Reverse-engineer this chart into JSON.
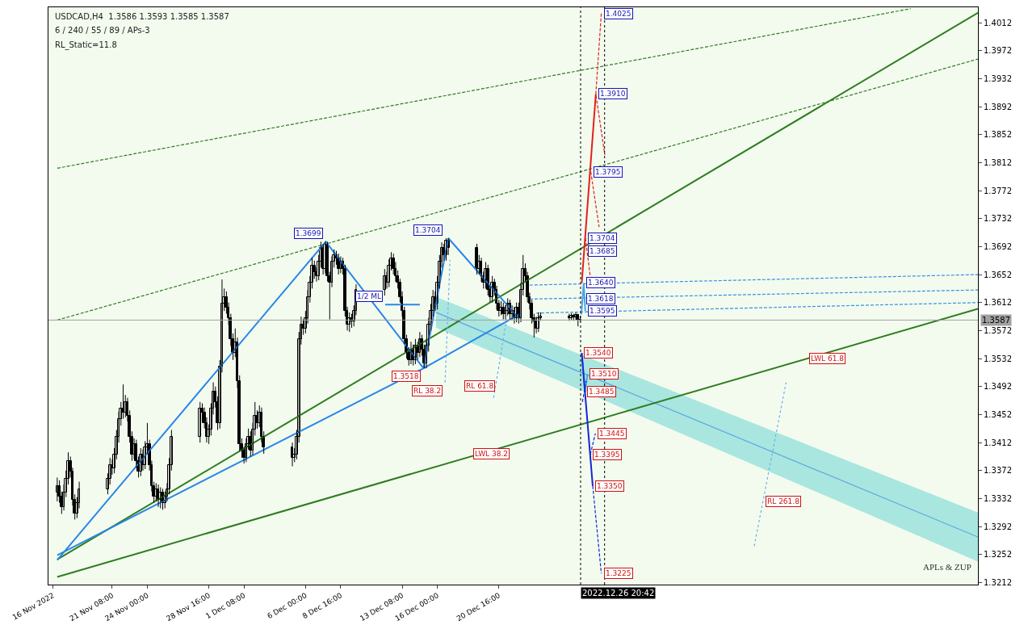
{
  "chart_data": {
    "type": "candlestick",
    "annotations": [
      "USDCAD,H4  1.3586 1.3593 1.3585 1.3587",
      "6 / 240 / 55 / 89 / APs-3",
      "RL_Static=11.8",
      "APLs & ZUP",
      {
        "text": "1.3699",
        "x": "2022-12-07T12:48",
        "y": 1.3699
      },
      {
        "text": "1.3704",
        "x": "2022-12-16T14:24",
        "y": 1.3704
      },
      {
        "text": "1.3518",
        "x": "2022-12-14T22:48",
        "y": 1.3518
      },
      {
        "text": "1.4025",
        "x": "2022-12-28T10:24",
        "y": 1.4025
      },
      {
        "text": "1.3910",
        "x": "2022-12-28T00:24",
        "y": 1.391
      },
      {
        "text": "1.3795",
        "x": "2022-12-27T15:12",
        "y": 1.3799
      },
      {
        "text": "1.3704",
        "x": "2022-12-27T05:36",
        "y": 1.3704
      },
      {
        "text": "1.3685",
        "x": "2022-12-27T05:36",
        "y": 1.3685
      },
      {
        "text": "1.3640",
        "x": "2022-12-27T02:24",
        "y": 1.364
      },
      {
        "text": "1.3618",
        "x": "2022-12-27T02:24",
        "y": 1.3618
      },
      {
        "text": "1.3595",
        "x": "2022-12-27T05:12",
        "y": 1.36
      },
      {
        "text": "1.3540",
        "x": "2022-12-26T22:48",
        "y": 1.354
      },
      {
        "text": "1.3510",
        "x": "2022-12-27T09:12",
        "y": 1.351
      },
      {
        "text": "1.3485",
        "x": "2022-12-27T04:48",
        "y": 1.3485
      },
      {
        "text": "1.3445",
        "x": "2022-12-27T23:36",
        "y": 1.3425
      },
      {
        "text": "1.3395",
        "x": "2022-12-27T14:24",
        "y": 1.3395
      },
      {
        "text": "1.3350",
        "x": "2022-12-27T18:48",
        "y": 1.335
      },
      {
        "text": "1.3225",
        "x": "2022-12-28T10:24",
        "y": 1.3225
      },
      {
        "text": "1/2 ML",
        "x": "2022-12-12T01:00",
        "y": 1.3609
      },
      {
        "text": "RL 38.2",
        "x": "2022-12-16T14:00",
        "y": 1.3498
      },
      {
        "text": "RL 61.8",
        "x": "2022-12-20T14:00",
        "y": 1.3504
      },
      {
        "text": "LWL 38.2",
        "x": "2022-12-21T16:00",
        "y": 1.3407
      },
      {
        "text": "LWL 61.8",
        "x": "2023-01-13T00:00",
        "y": 1.3532
      },
      {
        "text": "RL 261.8",
        "x": "2023-01-09T16:42",
        "y": 1.3328
      }
    ],
    "x": [
      "2022-11-17T04:00",
      "2022-11-17T08:00",
      "2022-11-17T12:00",
      "2022-11-17T16:00",
      "2022-11-17T20:00",
      "2022-11-18T00:00",
      "2022-11-18T04:00",
      "2022-11-18T08:00",
      "2022-11-18T12:00",
      "2022-11-18T16:00",
      "2022-11-18T20:00",
      "2022-11-21T00:00",
      "2022-11-21T04:00",
      "2022-11-21T08:00",
      "2022-11-21T12:00",
      "2022-11-21T16:00",
      "2022-11-21T20:00",
      "2022-11-22T00:00",
      "2022-11-22T04:00",
      "2022-11-22T08:00",
      "2022-11-22T12:00",
      "2022-11-22T16:00",
      "2022-11-22T20:00",
      "2022-11-23T00:00",
      "2022-11-23T04:00",
      "2022-11-23T08:00",
      "2022-11-23T12:00",
      "2022-11-23T16:00",
      "2022-11-23T20:00",
      "2022-11-24T00:00",
      "2022-11-24T04:00",
      "2022-11-24T08:00",
      "2022-11-24T12:00",
      "2022-11-24T16:00",
      "2022-11-24T20:00",
      "2022-11-25T00:00",
      "2022-11-25T04:00",
      "2022-11-25T08:00",
      "2022-11-25T12:00",
      "2022-11-25T16:00",
      "2022-11-25T20:00",
      "2022-11-28T00:00",
      "2022-11-28T04:00",
      "2022-11-28T08:00",
      "2022-11-28T12:00",
      "2022-11-28T16:00",
      "2022-11-28T20:00",
      "2022-11-29T00:00",
      "2022-11-29T04:00",
      "2022-11-29T08:00",
      "2022-11-29T12:00",
      "2022-11-29T16:00",
      "2022-11-29T20:00",
      "2022-11-30T00:00",
      "2022-11-30T04:00",
      "2022-11-30T08:00",
      "2022-11-30T12:00",
      "2022-11-30T16:00",
      "2022-11-30T20:00",
      "2022-12-01T00:00",
      "2022-12-01T04:00",
      "2022-12-01T08:00",
      "2022-12-01T12:00",
      "2022-12-01T16:00",
      "2022-12-01T20:00",
      "2022-12-02T00:00",
      "2022-12-02T04:00",
      "2022-12-02T08:00",
      "2022-12-02T12:00",
      "2022-12-02T16:00",
      "2022-12-02T20:00",
      "2022-12-05T00:00",
      "2022-12-05T04:00",
      "2022-12-05T08:00",
      "2022-12-05T12:00",
      "2022-12-05T16:00",
      "2022-12-05T20:00",
      "2022-12-06T00:00",
      "2022-12-06T04:00",
      "2022-12-06T08:00",
      "2022-12-06T12:00",
      "2022-12-06T16:00",
      "2022-12-06T20:00",
      "2022-12-07T00:00",
      "2022-12-07T04:00",
      "2022-12-07T08:00",
      "2022-12-07T12:00",
      "2022-12-07T16:00",
      "2022-12-07T20:00",
      "2022-12-08T00:00",
      "2022-12-08T04:00",
      "2022-12-08T08:00",
      "2022-12-08T12:00",
      "2022-12-08T16:00",
      "2022-12-08T20:00",
      "2022-12-09T00:00",
      "2022-12-09T04:00",
      "2022-12-09T08:00",
      "2022-12-09T12:00",
      "2022-12-09T16:00",
      "2022-12-09T20:00",
      "2022-12-12T00:00",
      "2022-12-12T04:00",
      "2022-12-12T08:00",
      "2022-12-12T12:00",
      "2022-12-12T16:00",
      "2022-12-12T20:00",
      "2022-12-13T00:00",
      "2022-12-13T04:00",
      "2022-12-13T08:00",
      "2022-12-13T12:00",
      "2022-12-13T16:00",
      "2022-12-13T20:00",
      "2022-12-14T00:00",
      "2022-12-14T04:00",
      "2022-12-14T08:00",
      "2022-12-14T12:00",
      "2022-12-14T16:00",
      "2022-12-14T20:00",
      "2022-12-15T00:00",
      "2022-12-15T04:00",
      "2022-12-15T08:00",
      "2022-12-15T12:00",
      "2022-12-15T16:00",
      "2022-12-15T20:00",
      "2022-12-16T00:00",
      "2022-12-16T04:00",
      "2022-12-16T08:00",
      "2022-12-16T12:00",
      "2022-12-16T16:00",
      "2022-12-16T20:00",
      "2022-12-19T00:00",
      "2022-12-19T04:00",
      "2022-12-19T08:00",
      "2022-12-19T12:00",
      "2022-12-19T16:00",
      "2022-12-19T20:00",
      "2022-12-20T00:00",
      "2022-12-20T04:00",
      "2022-12-20T08:00",
      "2022-12-20T12:00",
      "2022-12-20T16:00",
      "2022-12-20T20:00",
      "2022-12-21T00:00",
      "2022-12-21T04:00",
      "2022-12-21T08:00",
      "2022-12-21T12:00",
      "2022-12-21T16:00",
      "2022-12-21T20:00",
      "2022-12-22T00:00",
      "2022-12-22T04:00",
      "2022-12-22T08:00",
      "2022-12-22T12:00",
      "2022-12-22T16:00",
      "2022-12-22T20:00",
      "2022-12-23T00:00",
      "2022-12-23T04:00",
      "2022-12-23T08:00",
      "2022-12-23T12:00",
      "2022-12-23T16:00",
      "2022-12-23T20:00",
      "2022-12-26T00:00",
      "2022-12-26T04:00",
      "2022-12-26T08:00",
      "2022-12-26T12:00",
      "2022-12-26T16:00",
      "2022-12-26T20:00"
    ],
    "ohlc": [
      [
        1.334,
        1.3362,
        1.3328,
        1.335
      ],
      [
        1.335,
        1.3358,
        1.3326,
        1.3335
      ],
      [
        1.3335,
        1.3342,
        1.331,
        1.332
      ],
      [
        1.332,
        1.3352,
        1.3315,
        1.334
      ],
      [
        1.334,
        1.3372,
        1.3334,
        1.336
      ],
      [
        1.336,
        1.3398,
        1.3352,
        1.3385
      ],
      [
        1.3385,
        1.3392,
        1.3362,
        1.337
      ],
      [
        1.337,
        1.3376,
        1.3322,
        1.333
      ],
      [
        1.333,
        1.3338,
        1.3302,
        1.331
      ],
      [
        1.331,
        1.3334,
        1.3304,
        1.3325
      ],
      [
        1.3325,
        1.3356,
        1.3318,
        1.3345
      ],
      [
        1.3345,
        1.3368,
        1.3338,
        1.336
      ],
      [
        1.336,
        1.339,
        1.3352,
        1.338
      ],
      [
        1.338,
        1.3388,
        1.3366,
        1.3375
      ],
      [
        1.3375,
        1.3404,
        1.3368,
        1.3395
      ],
      [
        1.3395,
        1.343,
        1.3388,
        1.342
      ],
      [
        1.342,
        1.3456,
        1.3412,
        1.3445
      ],
      [
        1.3445,
        1.347,
        1.3436,
        1.346
      ],
      [
        1.346,
        1.3495,
        1.3446,
        1.3455
      ],
      [
        1.3455,
        1.348,
        1.3448,
        1.347
      ],
      [
        1.347,
        1.3476,
        1.3442,
        1.345
      ],
      [
        1.345,
        1.3458,
        1.3412,
        1.342
      ],
      [
        1.342,
        1.3428,
        1.3386,
        1.3395
      ],
      [
        1.3395,
        1.3418,
        1.3388,
        1.341
      ],
      [
        1.341,
        1.3416,
        1.3376,
        1.3385
      ],
      [
        1.3385,
        1.3392,
        1.3362,
        1.337
      ],
      [
        1.337,
        1.3404,
        1.3364,
        1.3395
      ],
      [
        1.3395,
        1.3402,
        1.3372,
        1.338
      ],
      [
        1.338,
        1.3414,
        1.3374,
        1.3405
      ],
      [
        1.3405,
        1.344,
        1.3396,
        1.341
      ],
      [
        1.341,
        1.3416,
        1.3372,
        1.338
      ],
      [
        1.338,
        1.3386,
        1.3342,
        1.335
      ],
      [
        1.335,
        1.3356,
        1.3326,
        1.3335
      ],
      [
        1.3335,
        1.3354,
        1.3328,
        1.3345
      ],
      [
        1.3345,
        1.3352,
        1.332,
        1.333
      ],
      [
        1.333,
        1.3348,
        1.3318,
        1.334
      ],
      [
        1.334,
        1.3346,
        1.3316,
        1.3325
      ],
      [
        1.3325,
        1.3342,
        1.3318,
        1.3335
      ],
      [
        1.3335,
        1.3354,
        1.3328,
        1.3345
      ],
      [
        1.3345,
        1.339,
        1.3338,
        1.338
      ],
      [
        1.338,
        1.343,
        1.3372,
        1.342
      ],
      [
        1.342,
        1.347,
        1.3412,
        1.346
      ],
      [
        1.346,
        1.3468,
        1.344,
        1.3455
      ],
      [
        1.3455,
        1.3462,
        1.3432,
        1.344
      ],
      [
        1.344,
        1.3448,
        1.3412,
        1.342
      ],
      [
        1.342,
        1.3438,
        1.341,
        1.343
      ],
      [
        1.343,
        1.3468,
        1.3422,
        1.346
      ],
      [
        1.346,
        1.3498,
        1.3452,
        1.3485
      ],
      [
        1.3485,
        1.3492,
        1.3462,
        1.347
      ],
      [
        1.347,
        1.3478,
        1.343,
        1.344
      ],
      [
        1.344,
        1.353,
        1.3432,
        1.352
      ],
      [
        1.352,
        1.3645,
        1.3512,
        1.361
      ],
      [
        1.361,
        1.3632,
        1.36,
        1.362
      ],
      [
        1.362,
        1.3628,
        1.3596,
        1.3605
      ],
      [
        1.3605,
        1.3612,
        1.358,
        1.359
      ],
      [
        1.359,
        1.3596,
        1.355,
        1.356
      ],
      [
        1.356,
        1.3568,
        1.353,
        1.354
      ],
      [
        1.354,
        1.3575,
        1.3534,
        1.3555
      ],
      [
        1.3555,
        1.3562,
        1.349,
        1.35
      ],
      [
        1.35,
        1.3508,
        1.34,
        1.341
      ],
      [
        1.341,
        1.3418,
        1.339,
        1.34
      ],
      [
        1.34,
        1.3406,
        1.3382,
        1.339
      ],
      [
        1.339,
        1.3418,
        1.3384,
        1.341
      ],
      [
        1.341,
        1.3432,
        1.3402,
        1.342
      ],
      [
        1.342,
        1.3428,
        1.3392,
        1.34
      ],
      [
        1.34,
        1.344,
        1.3394,
        1.343
      ],
      [
        1.343,
        1.347,
        1.3422,
        1.345
      ],
      [
        1.345,
        1.3458,
        1.3432,
        1.344
      ],
      [
        1.344,
        1.3465,
        1.3434,
        1.3455
      ],
      [
        1.3455,
        1.3462,
        1.3412,
        1.342
      ],
      [
        1.342,
        1.3428,
        1.3396,
        1.3405
      ],
      [
        1.3405,
        1.3412,
        1.3378,
        1.339
      ],
      [
        1.339,
        1.3404,
        1.3384,
        1.3395
      ],
      [
        1.3395,
        1.343,
        1.3388,
        1.342
      ],
      [
        1.342,
        1.357,
        1.3412,
        1.356
      ],
      [
        1.356,
        1.3592,
        1.3552,
        1.358
      ],
      [
        1.358,
        1.3588,
        1.3566,
        1.3575
      ],
      [
        1.3575,
        1.36,
        1.3568,
        1.359
      ],
      [
        1.359,
        1.363,
        1.3582,
        1.362
      ],
      [
        1.362,
        1.365,
        1.3612,
        1.364
      ],
      [
        1.364,
        1.3676,
        1.3632,
        1.3665
      ],
      [
        1.3665,
        1.3672,
        1.3646,
        1.3655
      ],
      [
        1.3655,
        1.3662,
        1.3642,
        1.365
      ],
      [
        1.365,
        1.368,
        1.3644,
        1.367
      ],
      [
        1.367,
        1.3699,
        1.3662,
        1.369
      ],
      [
        1.369,
        1.3696,
        1.3652,
        1.366
      ],
      [
        1.366,
        1.3699,
        1.3654,
        1.3695
      ],
      [
        1.3695,
        1.3699,
        1.3642,
        1.365
      ],
      [
        1.365,
        1.3656,
        1.3588,
        1.364
      ],
      [
        1.364,
        1.3678,
        1.3634,
        1.367
      ],
      [
        1.367,
        1.3688,
        1.3662,
        1.368
      ],
      [
        1.368,
        1.3686,
        1.3666,
        1.3675
      ],
      [
        1.3675,
        1.3682,
        1.3652,
        1.366
      ],
      [
        1.366,
        1.3678,
        1.3654,
        1.367
      ],
      [
        1.367,
        1.3676,
        1.3652,
        1.366
      ],
      [
        1.366,
        1.3666,
        1.3592,
        1.36
      ],
      [
        1.36,
        1.3606,
        1.3572,
        1.358
      ],
      [
        1.358,
        1.3598,
        1.357,
        1.359
      ],
      [
        1.359,
        1.3596,
        1.3576,
        1.3585
      ],
      [
        1.3585,
        1.3608,
        1.3578,
        1.36
      ],
      [
        1.36,
        1.3638,
        1.3594,
        1.363
      ],
      [
        1.363,
        1.366,
        1.3622,
        1.365
      ],
      [
        1.365,
        1.3656,
        1.3632,
        1.364
      ],
      [
        1.364,
        1.3674,
        1.3634,
        1.3665
      ],
      [
        1.3665,
        1.3684,
        1.3658,
        1.3675
      ],
      [
        1.3675,
        1.3682,
        1.3652,
        1.366
      ],
      [
        1.366,
        1.367,
        1.3642,
        1.365
      ],
      [
        1.365,
        1.3658,
        1.3632,
        1.364
      ],
      [
        1.364,
        1.3646,
        1.3612,
        1.362
      ],
      [
        1.362,
        1.3628,
        1.3592,
        1.36
      ],
      [
        1.36,
        1.3606,
        1.3552,
        1.356
      ],
      [
        1.356,
        1.3566,
        1.3532,
        1.354
      ],
      [
        1.354,
        1.3548,
        1.3522,
        1.353
      ],
      [
        1.353,
        1.3556,
        1.3524,
        1.3545
      ],
      [
        1.3545,
        1.3552,
        1.3522,
        1.353
      ],
      [
        1.353,
        1.356,
        1.3524,
        1.355
      ],
      [
        1.355,
        1.3556,
        1.353,
        1.354
      ],
      [
        1.354,
        1.357,
        1.3534,
        1.356
      ],
      [
        1.356,
        1.3566,
        1.3536,
        1.3545
      ],
      [
        1.3545,
        1.3552,
        1.3518,
        1.3525
      ],
      [
        1.3525,
        1.356,
        1.3518,
        1.355
      ],
      [
        1.355,
        1.359,
        1.3542,
        1.358
      ],
      [
        1.358,
        1.361,
        1.3572,
        1.36
      ],
      [
        1.36,
        1.363,
        1.3592,
        1.362
      ],
      [
        1.362,
        1.3628,
        1.36,
        1.361
      ],
      [
        1.361,
        1.365,
        1.3602,
        1.364
      ],
      [
        1.364,
        1.368,
        1.3632,
        1.367
      ],
      [
        1.367,
        1.3698,
        1.3662,
        1.369
      ],
      [
        1.369,
        1.3696,
        1.3672,
        1.368
      ],
      [
        1.368,
        1.3704,
        1.3672,
        1.37
      ],
      [
        1.37,
        1.3704,
        1.368,
        1.369
      ],
      [
        1.369,
        1.3696,
        1.3652,
        1.366
      ],
      [
        1.366,
        1.368,
        1.3652,
        1.367
      ],
      [
        1.367,
        1.3676,
        1.3642,
        1.365
      ],
      [
        1.365,
        1.3656,
        1.3632,
        1.364
      ],
      [
        1.364,
        1.367,
        1.3632,
        1.366
      ],
      [
        1.366,
        1.3666,
        1.3622,
        1.363
      ],
      [
        1.363,
        1.3636,
        1.3612,
        1.362
      ],
      [
        1.362,
        1.365,
        1.3612,
        1.364
      ],
      [
        1.364,
        1.3646,
        1.3622,
        1.363
      ],
      [
        1.363,
        1.3636,
        1.3602,
        1.361
      ],
      [
        1.361,
        1.3616,
        1.3592,
        1.36
      ],
      [
        1.36,
        1.3614,
        1.3594,
        1.3605
      ],
      [
        1.3605,
        1.3612,
        1.3588,
        1.3595
      ],
      [
        1.3595,
        1.3608,
        1.3588,
        1.36
      ],
      [
        1.36,
        1.3618,
        1.3594,
        1.361
      ],
      [
        1.361,
        1.3616,
        1.3588,
        1.3595
      ],
      [
        1.3595,
        1.3608,
        1.3588,
        1.36
      ],
      [
        1.36,
        1.3606,
        1.3582,
        1.359
      ],
      [
        1.359,
        1.3612,
        1.3584,
        1.3605
      ],
      [
        1.3605,
        1.3612,
        1.3582,
        1.359
      ],
      [
        1.359,
        1.364,
        1.3584,
        1.363
      ],
      [
        1.363,
        1.368,
        1.3622,
        1.366
      ],
      [
        1.366,
        1.3668,
        1.3642,
        1.365
      ],
      [
        1.365,
        1.3656,
        1.3612,
        1.362
      ],
      [
        1.362,
        1.3626,
        1.3602,
        1.361
      ],
      [
        1.361,
        1.3616,
        1.3582,
        1.359
      ],
      [
        1.359,
        1.3596,
        1.3562,
        1.3585
      ],
      [
        1.3585,
        1.3592,
        1.3568,
        1.3575
      ],
      [
        1.3575,
        1.3598,
        1.357,
        1.359
      ],
      [
        1.359,
        1.3598,
        1.3586,
        1.3592
      ],
      [
        1.3592,
        1.3596,
        1.3586,
        1.359
      ],
      [
        1.359,
        1.3597,
        1.3587,
        1.3593
      ],
      [
        1.3593,
        1.3596,
        1.3586,
        1.3591
      ],
      [
        1.3591,
        1.3598,
        1.3588,
        1.3594
      ],
      [
        1.3594,
        1.3596,
        1.3578,
        1.3586
      ],
      [
        1.3586,
        1.3593,
        1.3585,
        1.3587
      ]
    ],
    "series": [
      {
        "type": "line",
        "color": "#5aa6e0",
        "x": [
          "2022-12-15T21:36",
          "2023-01-26T00:00"
        ],
        "values": [
          1.3598,
          1.3277
        ],
        "lower": [
          1.3576,
          1.3242
        ],
        "upper": [
          1.362,
          1.3312
        ]
      },
      {
        "type": "line",
        "color": "#2e7d1e",
        "line_style": "solid",
        "x": [
          "2022-11-17T04:00",
          "2023-01-26T00:00"
        ],
        "values": [
          1.322,
          1.3603
        ]
      },
      {
        "type": "line",
        "color": "#2e7d1e",
        "line_style": "solid",
        "x": [
          "2022-11-17T04:00",
          "2023-01-26T00:00"
        ],
        "values": [
          1.3245,
          1.4026
        ]
      },
      {
        "type": "line",
        "color": "#2e7d1e",
        "line_style": "dashed",
        "x": [
          "2022-11-17T04:00",
          "2023-01-26T00:00"
        ],
        "values": [
          1.3587,
          1.396
        ]
      },
      {
        "type": "line",
        "color": "#2e7d1e",
        "line_style": "dashed",
        "x": [
          "2022-11-17T04:00",
          "2023-01-20T21:36"
        ],
        "values": [
          1.3804,
          1.4032
        ]
      },
      {
        "type": "line",
        "color": "#2a86e6",
        "line_style": "solid",
        "x": [
          "2022-11-17T04:00",
          "2022-12-07T12:48",
          "2022-12-14T22:48",
          "2022-12-16T20:00",
          "2022-12-22T04:48"
        ],
        "values": [
          1.3244,
          1.3699,
          1.3518,
          1.3704,
          1.3589
        ]
      },
      {
        "type": "line",
        "color": "#2a86e6",
        "line_style": "solid",
        "x": [
          "2022-11-17T04:00",
          "2022-12-14T22:48",
          "2022-12-22T04:48"
        ],
        "values": [
          1.3251,
          1.3518,
          1.3595
        ]
      },
      {
        "type": "line",
        "color": "#2a86e6",
        "line_style": "solid",
        "x": [
          "2022-12-12T01:00",
          "2022-12-14T16:00"
        ],
        "values": [
          1.3609,
          1.3609
        ]
      },
      {
        "type": "line",
        "color": "#6aaee8",
        "line_style": "dotted",
        "x": [
          "2022-12-16T14:00",
          "2022-12-16T23:00"
        ],
        "values": [
          1.3498,
          1.3673
        ]
      },
      {
        "type": "line",
        "color": "#6aaee8",
        "line_style": "dotted",
        "x": [
          "2022-12-20T06:24",
          "2022-12-21T11:12"
        ],
        "values": [
          1.3476,
          1.3613
        ]
      },
      {
        "type": "line",
        "color": "#6aaee8",
        "line_style": "dotted",
        "x": [
          "2023-01-09T00:48",
          "2023-01-11T10:48"
        ],
        "values": [
          1.3264,
          1.3498
        ]
      },
      {
        "type": "line",
        "color": "#3a8fe0",
        "line_style": "dashed",
        "x": [
          "2022-12-23T00:00",
          "2023-01-26T00:00"
        ],
        "values": [
          1.3637,
          1.3652
        ]
      },
      {
        "type": "line",
        "color": "#3a8fe0",
        "line_style": "dashed",
        "x": [
          "2022-12-23T00:00",
          "2023-01-26T00:00"
        ],
        "values": [
          1.3617,
          1.363
        ]
      },
      {
        "type": "line",
        "color": "#3a8fe0",
        "line_style": "dashed",
        "x": [
          "2022-12-23T12:00",
          "2023-01-26T00:00"
        ],
        "values": [
          1.3597,
          1.3612
        ]
      },
      {
        "type": "line",
        "color": "#e3201b",
        "line_style": "solid",
        "x": [
          "2022-12-26T22:48",
          "2022-12-28T00:24"
        ],
        "values": [
          1.364,
          1.391
        ]
      },
      {
        "type": "line",
        "color": "#e3201b",
        "line_style": "dashed",
        "x": [
          "2022-12-28T10:24",
          "2022-12-28T00:24",
          "2022-12-28T16:48"
        ],
        "values": [
          1.4025,
          1.391,
          1.3823
        ]
      },
      {
        "type": "line",
        "color": "#e3201b",
        "line_style": "dashed",
        "x": [
          "2022-12-27T05:36",
          "2022-12-27T14:00"
        ],
        "values": [
          1.3704,
          1.3651
        ]
      },
      {
        "type": "line",
        "color": "#e3201b",
        "line_style": "dashed",
        "x": [
          "2022-12-27T15:12",
          "2022-12-28T06:24"
        ],
        "values": [
          1.3799,
          1.372
        ]
      },
      {
        "type": "line",
        "color": "#4aa3ec",
        "line_style": "solid",
        "x": [
          "2022-12-26T22:00",
          "2022-12-27T02:24",
          "2022-12-27T05:12"
        ],
        "values": [
          1.3595,
          1.364,
          1.36
        ]
      },
      {
        "type": "line",
        "color": "#4aa3ec",
        "line_style": "solid",
        "x": [
          "2022-12-26T22:48",
          "2022-12-27T04:48",
          "2022-12-27T09:12"
        ],
        "values": [
          1.354,
          1.3485,
          1.351
        ]
      },
      {
        "type": "line",
        "color": "#1428d2",
        "line_style": "solid",
        "x": [
          "2022-12-26T22:48",
          "2022-12-27T18:48"
        ],
        "values": [
          1.354,
          1.335
        ]
      },
      {
        "type": "line",
        "color": "#1428d2",
        "line_style": "dashed",
        "x": [
          "2022-12-27T18:48",
          "2022-12-28T10:24"
        ],
        "values": [
          1.335,
          1.3225
        ]
      },
      {
        "type": "line",
        "color": "#1428d2",
        "line_style": "dashed",
        "x": [
          "2022-12-27T00:00",
          "2022-12-27T07:00"
        ],
        "values": [
          1.347,
          1.35
        ]
      },
      {
        "type": "line",
        "color": "#1428d2",
        "line_style": "dashed",
        "x": [
          "2022-12-27T14:24",
          "2022-12-27T23:36"
        ],
        "values": [
          1.3395,
          1.3425
        ]
      }
    ],
    "ref_lines": [
      {
        "axis": "y",
        "value": 1.3587,
        "label": "1.3587",
        "color": "#a0a0a0",
        "line_style": "solid"
      },
      {
        "axis": "x",
        "value": "2022-12-26T20:42",
        "label": "2022.12.26 20:42",
        "color": "#000000",
        "line_style": "dotted"
      },
      {
        "axis": "x",
        "value": "2022-12-28T16:24",
        "color": "#000000",
        "line_style": "dotted"
      }
    ],
    "xlim": [
      "2022-11-16T12:00",
      "2023-01-26T00:00"
    ],
    "xticks": [
      {
        "value": "2022-11-16T20:00",
        "label": "16 Nov 2022"
      },
      {
        "value": "2022-11-21T08:00",
        "label": "21 Nov 08:00"
      },
      {
        "value": "2022-11-24T00:00",
        "label": "24 Nov 00:00"
      },
      {
        "value": "2022-11-28T16:00",
        "label": "28 Nov 16:00"
      },
      {
        "value": "2022-12-01T08:00",
        "label": "1 Dec 08:00"
      },
      {
        "value": "2022-12-06T00:00",
        "label": "6 Dec 00:00"
      },
      {
        "value": "2022-12-08T16:00",
        "label": "8 Dec 16:00"
      },
      {
        "value": "2022-12-13T08:00",
        "label": "13 Dec 08:00"
      },
      {
        "value": "2022-12-16T00:00",
        "label": "16 Dec 00:00"
      },
      {
        "value": "2022-12-20T16:00",
        "label": "20 Dec 16:00"
      }
    ],
    "ylim": [
      1.3209,
      1.4034
    ],
    "yticks": [
      1.3212,
      1.3252,
      1.3292,
      1.3332,
      1.3372,
      1.3412,
      1.3452,
      1.3492,
      1.3532,
      1.3572,
      1.3612,
      1.3652,
      1.3692,
      1.3732,
      1.3772,
      1.3812,
      1.3852,
      1.3892,
      1.3932,
      1.3972,
      1.4012
    ]
  }
}
